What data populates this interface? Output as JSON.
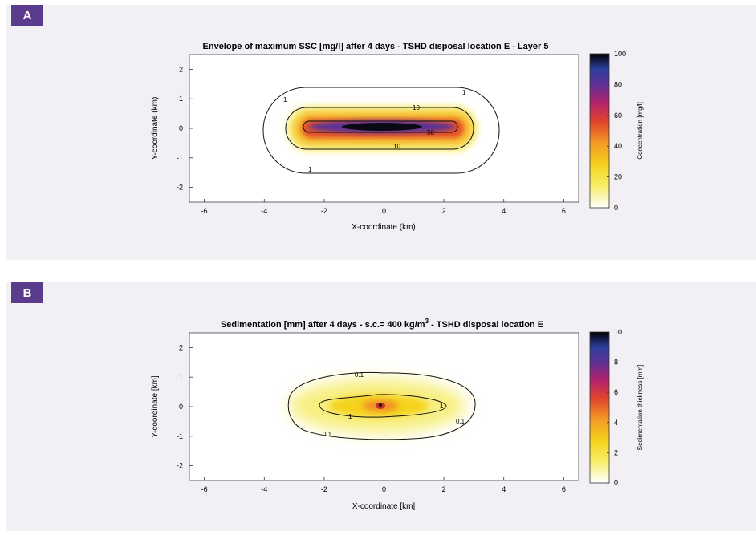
{
  "panels": [
    {
      "label": "A"
    },
    {
      "label": "B"
    }
  ],
  "chart_data": [
    {
      "type": "heatmap",
      "title": "Envelope of maximum SSC [mg/l] after 4 days - TSHD disposal location E - Layer 5",
      "xlabel": "X-coordinate (km)",
      "ylabel": "Y-coordinate (km)",
      "xlim": [
        -6.5,
        6.5
      ],
      "ylim": [
        -2.5,
        2.5
      ],
      "xticks": [
        -6,
        -4,
        -2,
        0,
        2,
        4,
        6
      ],
      "yticks": [
        -2,
        -1,
        0,
        1,
        2
      ],
      "colorbar": {
        "label": "Concentration [mg/l]",
        "range": [
          0,
          100
        ],
        "ticks": [
          0,
          20,
          40,
          60,
          80,
          100
        ]
      },
      "colormap": [
        "#ffffff",
        "#f5e61f",
        "#f4a424",
        "#e2482a",
        "#b4226a",
        "#6a2f8f",
        "#2f3d9c",
        "#000000"
      ],
      "contours": [
        {
          "level": 1,
          "label": "1",
          "half_length_km": 2.65,
          "half_width_km": 1.45
        },
        {
          "level": 10,
          "label": "10",
          "half_length_km": 1.75,
          "half_width_km": 0.7
        },
        {
          "level": 50,
          "label": "50",
          "half_length_km": 1.55,
          "half_width_km": 0.22
        }
      ],
      "core": {
        "x_km": 0,
        "y_km": 0.08,
        "half_length_km": 1.3,
        "half_width_km": 0.12,
        "peak": 100
      }
    },
    {
      "type": "heatmap",
      "title_main": "Sedimentation [mm] after 4 days - s.c.= 400 kg/m",
      "title_sup": "3",
      "title_tail": " - TSHD disposal location E",
      "xlabel": "X-coordinate [km]",
      "ylabel": "Y-coordinate [km]",
      "xlim": [
        -6.5,
        6.5
      ],
      "ylim": [
        -2.5,
        2.5
      ],
      "xticks": [
        -6,
        -4,
        -2,
        0,
        2,
        4,
        6
      ],
      "yticks": [
        -2,
        -1,
        0,
        1,
        2
      ],
      "colorbar": {
        "label": "Sedimentation thickness [mm]",
        "range": [
          0,
          10
        ],
        "ticks": [
          0,
          2,
          4,
          6,
          8,
          10
        ]
      },
      "colormap": [
        "#ffffff",
        "#f5e61f",
        "#f4a424",
        "#e2482a",
        "#b4226a",
        "#6a2f8f",
        "#2f3d9c",
        "#000000"
      ],
      "contours": [
        {
          "level": 0.1,
          "label": "0.1"
        },
        {
          "level": 1,
          "label": "1"
        }
      ],
      "core": {
        "x_km": 0,
        "y_km": 0.05,
        "peak": 10
      }
    }
  ]
}
